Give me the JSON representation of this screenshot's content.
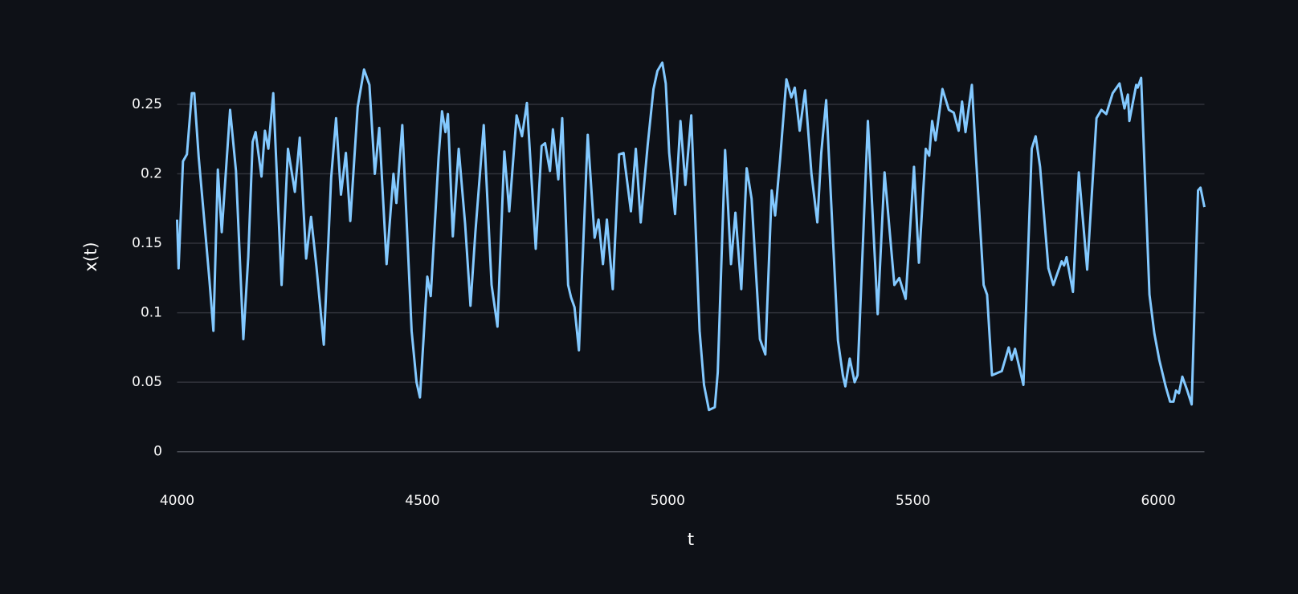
{
  "chart_data": {
    "type": "line",
    "x_label": "t",
    "y_label": "x(t)",
    "xlim": [
      4000,
      6094
    ],
    "ylim": [
      -0.01,
      0.29
    ],
    "xticks": [
      4000,
      4500,
      5000,
      5500,
      6000
    ],
    "yticks": [
      0,
      0.05,
      0.1,
      0.15,
      0.2,
      0.25
    ],
    "grid": true,
    "series": [
      {
        "color": "#83c9ff",
        "x": [
          4000,
          4003,
          4012,
          4020,
          4030,
          4035,
          4044,
          4056,
          4066,
          4074,
          4083,
          4091,
          4108,
          4120,
          4135,
          4145,
          4154,
          4160,
          4172,
          4179,
          4186,
          4196,
          4213,
          4226,
          4240,
          4250,
          4263,
          4273,
          4284,
          4299,
          4314,
          4324,
          4334,
          4344,
          4353,
          4368,
          4381,
          4392,
          4403,
          4412,
          4427,
          4441,
          4447,
          4459,
          4478,
          4488,
          4495,
          4510,
          4517,
          4533,
          4540,
          4547,
          4552,
          4562,
          4574,
          4587,
          4598,
          4608,
          4625,
          4641,
          4653,
          4667,
          4677,
          4692,
          4703,
          4713,
          4731,
          4743,
          4750,
          4760,
          4766,
          4777,
          4785,
          4797,
          4803,
          4810,
          4819,
          4837,
          4851,
          4859,
          4868,
          4876,
          4888,
          4901,
          4910,
          4925,
          4935,
          4945,
          4959,
          4971,
          4979,
          4989,
          4996,
          5003,
          5015,
          5026,
          5036,
          5048,
          5065,
          5074,
          5084,
          5096,
          5102,
          5117,
          5129,
          5138,
          5150,
          5161,
          5171,
          5188,
          5199,
          5212,
          5219,
          5229,
          5242,
          5252,
          5259,
          5269,
          5280,
          5293,
          5305,
          5313,
          5323,
          5347,
          5357,
          5362,
          5371,
          5381,
          5387,
          5408,
          5428,
          5442,
          5462,
          5472,
          5485,
          5502,
          5512,
          5526,
          5533,
          5539,
          5546,
          5560,
          5573,
          5583,
          5593,
          5600,
          5607,
          5620,
          5627,
          5644,
          5651,
          5661,
          5681,
          5695,
          5701,
          5708,
          5725,
          5742,
          5750,
          5759,
          5776,
          5786,
          5803,
          5808,
          5813,
          5826,
          5838,
          5855,
          5874,
          5884,
          5894,
          5907,
          5921,
          5931,
          5938,
          5941,
          5955,
          5958,
          5965,
          5982,
          5992,
          6002,
          6015,
          6024,
          6031,
          6036,
          6042,
          6049,
          6059,
          6068,
          6081,
          6086,
          6094
        ],
        "values": [
          0.167,
          0.132,
          0.209,
          0.214,
          0.258,
          0.258,
          0.212,
          0.164,
          0.123,
          0.087,
          0.203,
          0.158,
          0.246,
          0.202,
          0.081,
          0.14,
          0.223,
          0.23,
          0.198,
          0.231,
          0.218,
          0.258,
          0.12,
          0.218,
          0.187,
          0.226,
          0.139,
          0.169,
          0.133,
          0.077,
          0.197,
          0.24,
          0.185,
          0.215,
          0.166,
          0.248,
          0.275,
          0.264,
          0.2,
          0.233,
          0.135,
          0.2,
          0.179,
          0.235,
          0.087,
          0.05,
          0.039,
          0.126,
          0.112,
          0.212,
          0.245,
          0.23,
          0.243,
          0.155,
          0.218,
          0.164,
          0.105,
          0.158,
          0.235,
          0.12,
          0.09,
          0.216,
          0.173,
          0.242,
          0.227,
          0.251,
          0.146,
          0.22,
          0.222,
          0.202,
          0.232,
          0.196,
          0.24,
          0.12,
          0.111,
          0.104,
          0.073,
          0.228,
          0.154,
          0.167,
          0.135,
          0.167,
          0.117,
          0.214,
          0.215,
          0.173,
          0.218,
          0.165,
          0.22,
          0.261,
          0.274,
          0.28,
          0.265,
          0.215,
          0.171,
          0.238,
          0.192,
          0.242,
          0.087,
          0.048,
          0.03,
          0.032,
          0.057,
          0.217,
          0.135,
          0.172,
          0.117,
          0.204,
          0.182,
          0.081,
          0.07,
          0.188,
          0.17,
          0.21,
          0.268,
          0.255,
          0.262,
          0.231,
          0.26,
          0.2,
          0.165,
          0.215,
          0.253,
          0.08,
          0.055,
          0.047,
          0.067,
          0.05,
          0.055,
          0.238,
          0.099,
          0.201,
          0.12,
          0.125,
          0.11,
          0.205,
          0.136,
          0.218,
          0.213,
          0.238,
          0.224,
          0.261,
          0.246,
          0.244,
          0.231,
          0.252,
          0.23,
          0.264,
          0.22,
          0.12,
          0.113,
          0.055,
          0.058,
          0.075,
          0.066,
          0.074,
          0.048,
          0.218,
          0.227,
          0.205,
          0.132,
          0.12,
          0.137,
          0.134,
          0.14,
          0.115,
          0.201,
          0.131,
          0.24,
          0.246,
          0.243,
          0.258,
          0.265,
          0.247,
          0.257,
          0.238,
          0.264,
          0.262,
          0.269,
          0.113,
          0.085,
          0.066,
          0.047,
          0.036,
          0.036,
          0.044,
          0.042,
          0.054,
          0.044,
          0.034,
          0.188,
          0.19,
          0.176
        ]
      }
    ]
  }
}
